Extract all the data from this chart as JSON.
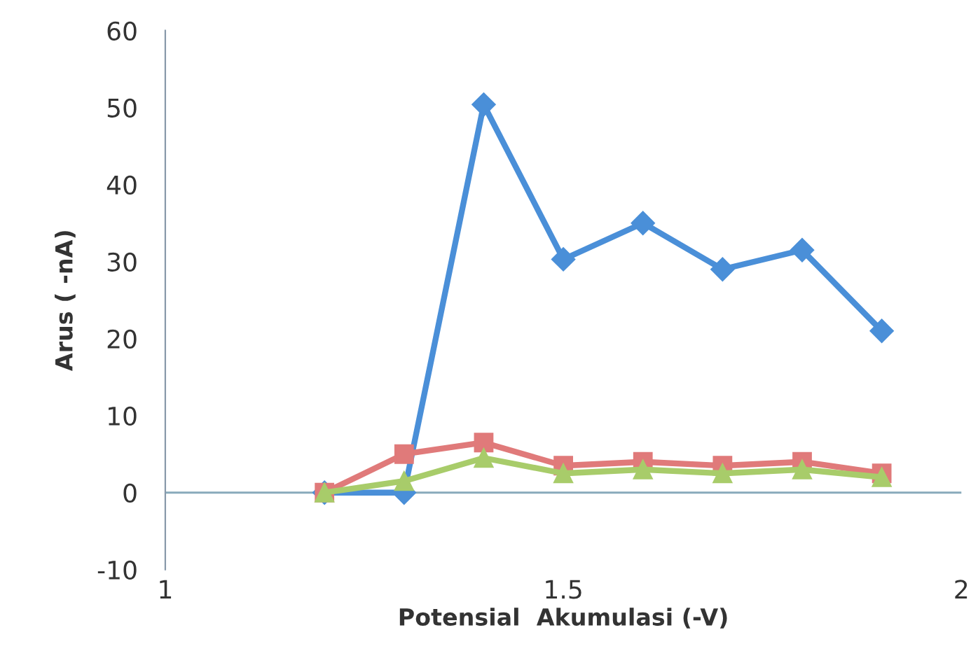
{
  "chart_data": {
    "type": "line",
    "xlabel": "Potensial  Akumulasi (-V)",
    "ylabel": "Arus ( -nA)",
    "x": [
      1.2,
      1.3,
      1.4,
      1.5,
      1.6,
      1.7,
      1.8,
      1.9
    ],
    "series": [
      {
        "color": "#4a8fd8",
        "marker": "diamond",
        "values": [
          0,
          0,
          50.4,
          30.3,
          35,
          29,
          31.5,
          21
        ]
      },
      {
        "color": "#e07a7a",
        "marker": "square",
        "values": [
          0,
          5,
          6.5,
          3.5,
          4,
          3.5,
          4,
          2.5
        ]
      },
      {
        "color": "#a8cc6a",
        "marker": "triangle",
        "values": [
          0,
          1.5,
          4.5,
          2.5,
          3,
          2.5,
          3,
          2
        ]
      }
    ],
    "xlim": [
      1,
      2
    ],
    "xticks": [
      1,
      1.5,
      2
    ],
    "ylim": [
      -10,
      60
    ],
    "yticks": [
      -10,
      0,
      10,
      20,
      30,
      40,
      50,
      60
    ],
    "ref_lines": [
      {
        "axis": "y",
        "value": 0,
        "color": "#88aabb"
      }
    ],
    "grid": false,
    "legend": false
  }
}
